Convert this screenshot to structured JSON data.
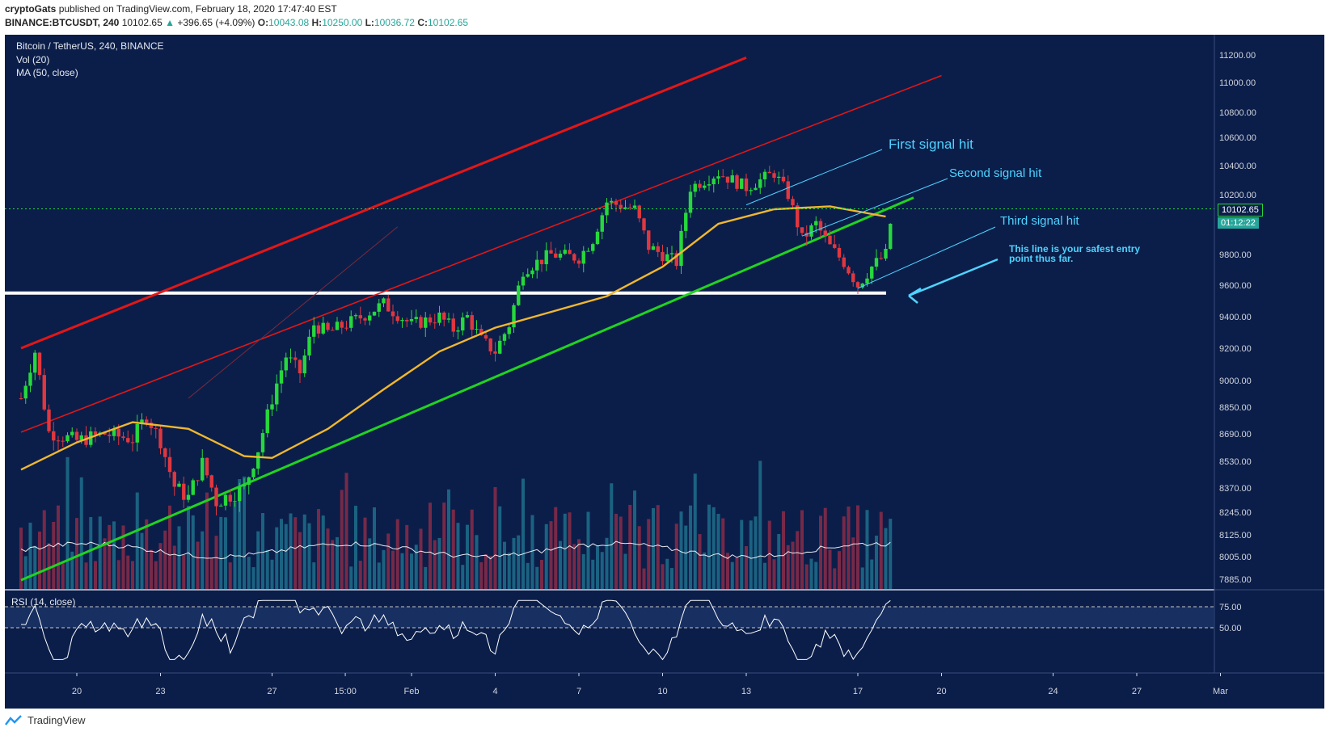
{
  "header": {
    "author": "cryptoGats",
    "published": "published on TradingView.com, February 18, 2020 17:47:40 EST",
    "symbol": "BINANCE:BTCUSDT, 240",
    "last": "10102.65",
    "change": "+396.65 (+4.09%)",
    "o_label": "O:",
    "o": "10043.08",
    "h_label": "H:",
    "h": "10250.00",
    "l_label": "L:",
    "l": "10036.72",
    "c_label": "C:",
    "c": "10102.65"
  },
  "legend": {
    "title": "Bitcoin / TetherUS, 240, BINANCE",
    "vol": "Vol (20)",
    "ma": "MA (50, close)",
    "rsi": "RSI (14, close)"
  },
  "price_tags": {
    "last": "10102.65",
    "countdown": "01:12:22"
  },
  "annotations": {
    "first": "First signal hit",
    "second": "Second signal hit",
    "third": "Third signal hit",
    "entry_line1": "This line is your safest entry",
    "entry_line2": "point thus far."
  },
  "footer": {
    "brand": "TradingView"
  },
  "colors": {
    "background": "#0b1e4a",
    "bull": "#26d83c",
    "bear": "#e0373f",
    "ma": "#f0b72f",
    "support": "#21d321",
    "channel": "#e41616",
    "annotation": "#4fd3ff"
  },
  "chart_data": {
    "type": "candlestick",
    "interval": "240",
    "price_ticks": [
      "11200.00",
      "11000.00",
      "10800.00",
      "10600.00",
      "10400.00",
      "10200.00",
      "10000.00",
      "9800.00",
      "9600.00",
      "9400.00",
      "9200.00",
      "9000.00",
      "8850.00",
      "8690.00",
      "8530.00",
      "8370.00",
      "8245.00",
      "8125.00",
      "8005.00",
      "7885.00"
    ],
    "rsi_ticks": [
      "75.00",
      "50.00"
    ],
    "x_ticks": [
      "20",
      "23",
      "27",
      "15:00",
      "Feb",
      "4",
      "7",
      "10",
      "13",
      "17",
      "20",
      "24",
      "27",
      "Mar"
    ],
    "current_price": 10102.65,
    "horizontal_level": 9550,
    "close_path": [
      {
        "d": "Jan 18",
        "c": 8900
      },
      {
        "d": "Jan 18 12:00",
        "c": 9180
      },
      {
        "d": "Jan 19",
        "c": 8700
      },
      {
        "d": "Jan 20",
        "c": 8650
      },
      {
        "d": "Jan 21",
        "c": 8690
      },
      {
        "d": "Jan 22",
        "c": 8660
      },
      {
        "d": "Jan 22 12:00",
        "c": 8800
      },
      {
        "d": "Jan 23",
        "c": 8650
      },
      {
        "d": "Jan 23 12:00",
        "c": 8380
      },
      {
        "d": "Jan 24",
        "c": 8320
      },
      {
        "d": "Jan 24 12:00",
        "c": 8520
      },
      {
        "d": "Jan 25",
        "c": 8300
      },
      {
        "d": "Jan 26",
        "c": 8370
      },
      {
        "d": "Jan 26 12:00",
        "c": 8600
      },
      {
        "d": "Jan 27",
        "c": 8900
      },
      {
        "d": "Jan 27 12:00",
        "c": 9150
      },
      {
        "d": "Jan 28",
        "c": 9050
      },
      {
        "d": "Jan 28 12:00",
        "c": 9350
      },
      {
        "d": "Jan 29",
        "c": 9300
      },
      {
        "d": "Jan 30",
        "c": 9380
      },
      {
        "d": "Jan 31",
        "c": 9480
      },
      {
        "d": "Feb 1",
        "c": 9350
      },
      {
        "d": "Feb 2",
        "c": 9400
      },
      {
        "d": "Feb 2 12:00",
        "c": 9320
      },
      {
        "d": "Feb 3",
        "c": 9400
      },
      {
        "d": "Feb 3 12:00",
        "c": 9250
      },
      {
        "d": "Feb 4",
        "c": 9180
      },
      {
        "d": "Feb 4 12:00",
        "c": 9350
      },
      {
        "d": "Feb 5",
        "c": 9700
      },
      {
        "d": "Feb 6",
        "c": 9800
      },
      {
        "d": "Feb 7",
        "c": 9780
      },
      {
        "d": "Feb 7 12:00",
        "c": 9900
      },
      {
        "d": "Feb 8",
        "c": 10150
      },
      {
        "d": "Feb 9",
        "c": 10100
      },
      {
        "d": "Feb 9 12:00",
        "c": 9850
      },
      {
        "d": "Feb 10",
        "c": 9800
      },
      {
        "d": "Feb 10 12:00",
        "c": 9750
      },
      {
        "d": "Feb 11",
        "c": 10250
      },
      {
        "d": "Feb 12",
        "c": 10350
      },
      {
        "d": "Feb 12 12:00",
        "c": 10300
      },
      {
        "d": "Feb 13",
        "c": 10250
      },
      {
        "d": "Feb 13 12:00",
        "c": 10300
      },
      {
        "d": "Feb 14",
        "c": 10350
      },
      {
        "d": "Feb 14 12:00",
        "c": 10200
      },
      {
        "d": "Feb 15",
        "c": 9900
      },
      {
        "d": "Feb 15 12:00",
        "c": 10000
      },
      {
        "d": "Feb 16",
        "c": 9850
      },
      {
        "d": "Feb 16 12:00",
        "c": 9750
      },
      {
        "d": "Feb 17",
        "c": 9600
      },
      {
        "d": "Feb 17 12:00",
        "c": 9720
      },
      {
        "d": "Feb 18",
        "c": 9800
      },
      {
        "d": "Feb 18 06:00",
        "c": 10102.65
      }
    ],
    "ma50_path": [
      {
        "d": "Jan 18",
        "v": 8480
      },
      {
        "d": "Jan 20",
        "v": 8640
      },
      {
        "d": "Jan 22",
        "v": 8760
      },
      {
        "d": "Jan 24",
        "v": 8720
      },
      {
        "d": "Jan 26",
        "v": 8560
      },
      {
        "d": "Jan 27",
        "v": 8550
      },
      {
        "d": "Jan 29",
        "v": 8720
      },
      {
        "d": "Jan 31",
        "v": 8950
      },
      {
        "d": "Feb 2",
        "v": 9180
      },
      {
        "d": "Feb 4",
        "v": 9330
      },
      {
        "d": "Feb 6",
        "v": 9430
      },
      {
        "d": "Feb 8",
        "v": 9530
      },
      {
        "d": "Feb 10",
        "v": 9720
      },
      {
        "d": "Feb 12",
        "v": 10000
      },
      {
        "d": "Feb 14",
        "v": 10100
      },
      {
        "d": "Feb 16",
        "v": 10120
      },
      {
        "d": "Feb 18",
        "v": 10050
      }
    ],
    "lines": [
      {
        "name": "upper-channel",
        "from": {
          "d": "Jan 18",
          "p": 9200
        },
        "to": {
          "d": "Feb 13",
          "p": 11180
        }
      },
      {
        "name": "mid-channel",
        "from": {
          "d": "Jan 18",
          "p": 8700
        },
        "to": {
          "d": "Feb 20",
          "p": 11050
        }
      },
      {
        "name": "support-trendline",
        "from": {
          "d": "Jan 18",
          "p": 7880
        },
        "to": {
          "d": "Feb 19",
          "p": 10180
        }
      }
    ]
  }
}
